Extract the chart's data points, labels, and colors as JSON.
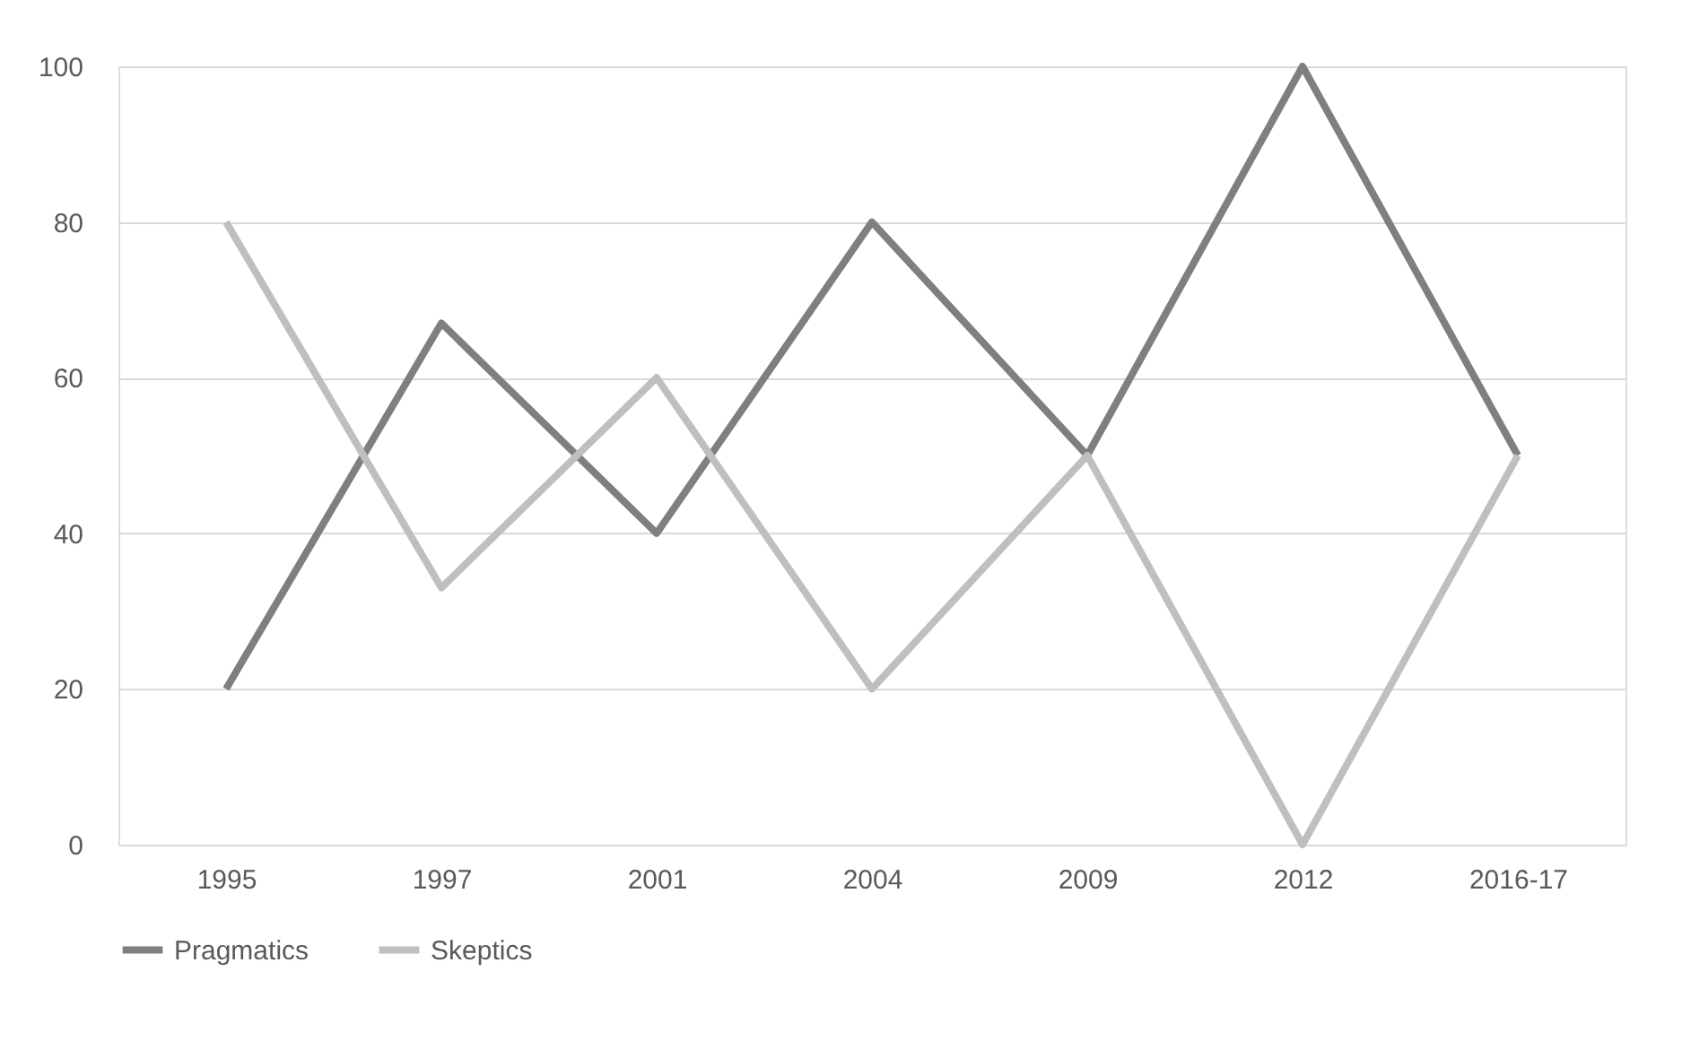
{
  "chart_data": {
    "type": "line",
    "categories": [
      "1995",
      "1997",
      "2001",
      "2004",
      "2009",
      "2012",
      "2016-17"
    ],
    "series": [
      {
        "name": "Pragmatics",
        "color": "#7f7f7f",
        "values": [
          20,
          67,
          40,
          80,
          50,
          100,
          50
        ]
      },
      {
        "name": "Skeptics",
        "color": "#bfbfbf",
        "values": [
          80,
          33,
          60,
          20,
          50,
          0,
          50
        ]
      }
    ],
    "ylim": [
      0,
      100
    ],
    "yticks": [
      0,
      20,
      40,
      60,
      80,
      100
    ],
    "grid": "y",
    "legend": "bottom",
    "line_style": "solid",
    "marker": "none"
  }
}
